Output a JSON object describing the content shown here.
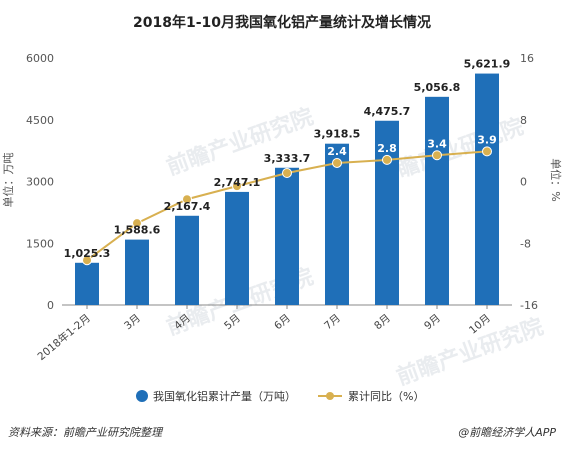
{
  "chart_data": {
    "type": "bar",
    "title": "2018年1-10月我国氧化铝产量统计及增长情况",
    "categories": [
      "2018年1-2月",
      "3月",
      "4月",
      "5月",
      "6月",
      "7月",
      "8月",
      "9月",
      "10月"
    ],
    "series": [
      {
        "name": "我国氧化铝累计产量（万吨）",
        "type": "bar",
        "axis": "left",
        "color": "#1f6fb8",
        "values": [
          1025.3,
          1588.6,
          2167.4,
          2747.1,
          3333.7,
          3918.5,
          4475.7,
          5056.8,
          5621.9
        ],
        "labels": [
          "1,025.3",
          "1,588.6",
          "2,167.4",
          "2,747.1",
          "3,333.7",
          "3,918.5",
          "4,475.7",
          "5,056.8",
          "5,621.9"
        ]
      },
      {
        "name": "累计同比（%）",
        "type": "line",
        "axis": "right",
        "color": "#d8b050",
        "values": [
          -10.2,
          -5.4,
          -2.3,
          -0.6,
          1.1,
          2.4,
          2.8,
          3.4,
          3.9
        ],
        "labels": [
          "",
          "",
          "",
          "",
          "",
          "2.4",
          "2.8",
          "3.4",
          "3.9"
        ]
      }
    ],
    "y_left": {
      "label": "单位：万吨",
      "ticks": [
        "0",
        "1500",
        "3000",
        "4500",
        "6000"
      ],
      "ylim": [
        0,
        6000
      ]
    },
    "y_right": {
      "label": "单位：%",
      "ticks": [
        "-16",
        "-8",
        "0",
        "8",
        "16"
      ],
      "ylim": [
        -16,
        16
      ]
    },
    "grid": false,
    "legend_position": "bottom"
  },
  "watermark": "前瞻产业研究院",
  "footer": {
    "source": "资料来源：前瞻产业研究院整理",
    "brand": "@前瞻经济学人APP"
  }
}
